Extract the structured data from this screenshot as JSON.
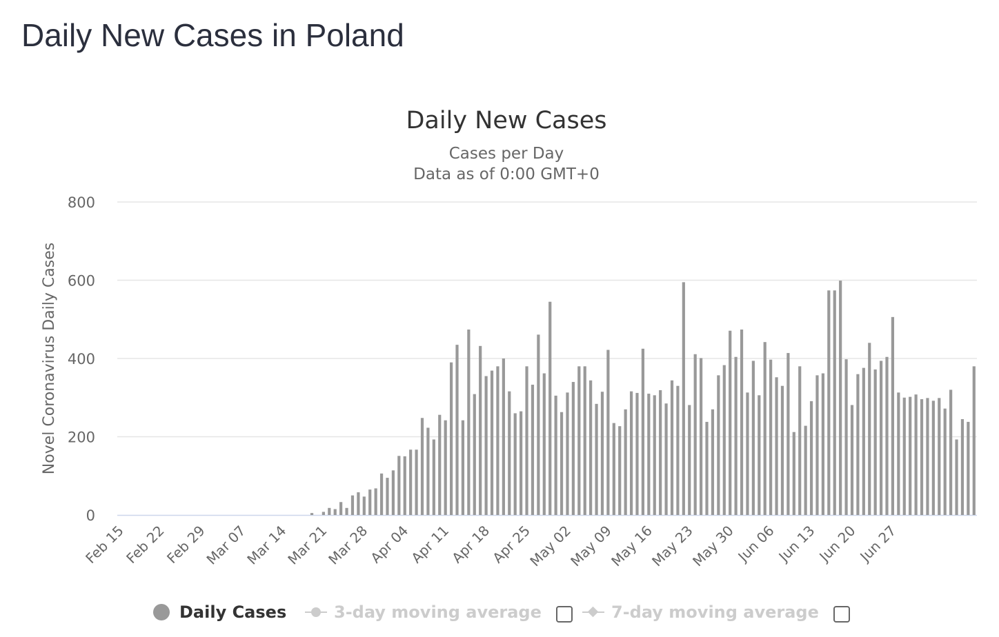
{
  "page_title": "Daily New Cases in Poland",
  "chart_data": {
    "type": "bar",
    "title": "Daily New Cases",
    "subtitle_lines": [
      "Cases per Day",
      "Data as of 0:00 GMT+0"
    ],
    "ylabel": "Novel Coronavirus Daily Cases",
    "xlabel": "",
    "ylim": [
      0,
      800
    ],
    "yticks": [
      "0",
      "200",
      "400",
      "600",
      "800"
    ],
    "grid": true,
    "legend_position": "bottom",
    "x_start": "Feb 15",
    "x_end": "Jul 01",
    "xtick_labels": [
      "Feb 15",
      "Feb 22",
      "Feb 29",
      "Mar 07",
      "Mar 14",
      "Mar 21",
      "Mar 28",
      "Apr 04",
      "Apr 11",
      "Apr 18",
      "Apr 25",
      "May 02",
      "May 09",
      "May 16",
      "May 23",
      "May 30",
      "Jun 06",
      "Jun 13",
      "Jun 20",
      "Jun 27"
    ],
    "series": [
      {
        "name": "Daily Cases",
        "color": "#999999",
        "values": [
          0,
          0,
          0,
          0,
          0,
          0,
          0,
          0,
          0,
          0,
          0,
          0,
          0,
          0,
          0,
          0,
          0,
          0,
          0,
          0,
          0,
          0,
          0,
          0,
          0,
          0,
          0,
          0,
          0,
          0,
          0,
          0,
          0,
          5,
          0,
          8,
          18,
          15,
          33,
          18,
          50,
          58,
          47,
          65,
          68,
          106,
          95,
          114,
          151,
          150,
          167,
          167,
          248,
          223,
          193,
          256,
          242,
          390,
          435,
          242,
          474,
          309,
          432,
          355,
          369,
          380,
          400,
          316,
          260,
          265,
          380,
          333,
          461,
          362,
          545,
          305,
          263,
          313,
          340,
          380,
          380,
          344,
          284,
          315,
          422,
          235,
          227,
          270,
          316,
          312,
          425,
          310,
          306,
          319,
          285,
          344,
          330,
          595,
          281,
          411,
          401,
          238,
          270,
          357,
          383,
          471,
          404,
          474,
          313,
          394,
          306,
          442,
          397,
          352,
          330,
          414,
          212,
          380,
          228,
          291,
          357,
          362,
          574,
          574,
          599,
          398,
          281,
          360,
          376,
          440,
          372,
          394,
          404,
          506,
          313,
          300,
          302,
          308,
          296,
          299,
          292,
          299,
          272,
          320,
          193,
          245,
          238,
          380
        ]
      }
    ],
    "legend": [
      {
        "label": "Daily Cases",
        "color": "#999999",
        "active": true
      },
      {
        "label": "3-day moving average",
        "color": "#cccccc",
        "active": false
      },
      {
        "label": "7-day moving average",
        "color": "#cccccc",
        "active": false
      }
    ]
  }
}
